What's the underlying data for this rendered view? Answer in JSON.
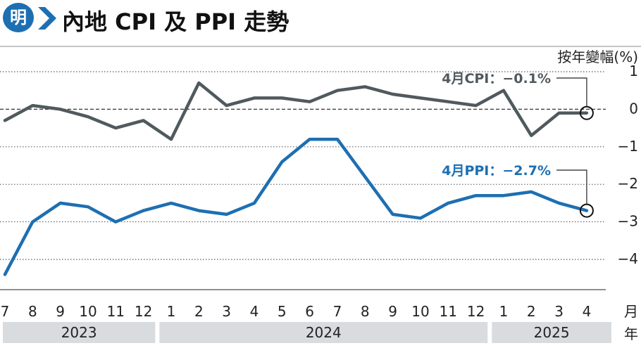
{
  "logo_text": "明",
  "title": "內地 CPI 及 PPI 走勢",
  "colors": {
    "cpi": "#505a5e",
    "ppi": "#1d6fb2",
    "logo": "#1d6fb2",
    "year_band": "#d9dcdf"
  },
  "chart_data": {
    "type": "line",
    "title": "內地 CPI 及 PPI 走勢",
    "unit_label": "按年變幅(%)",
    "x_unit_label": "月\n年",
    "x": [
      "7",
      "8",
      "9",
      "10",
      "11",
      "12",
      "1",
      "2",
      "3",
      "4",
      "5",
      "6",
      "7",
      "8",
      "9",
      "10",
      "11",
      "12",
      "1",
      "2",
      "3",
      "4"
    ],
    "years": [
      {
        "label": "2023",
        "from": 0,
        "to": 5
      },
      {
        "label": "2024",
        "from": 6,
        "to": 17
      },
      {
        "label": "2025",
        "from": 18,
        "to": 21
      }
    ],
    "ylim": [
      -4.5,
      1.3
    ],
    "yticks": [
      1,
      0,
      -1,
      -2,
      -3,
      -4
    ],
    "ytick_labels": [
      "1",
      "0",
      "−1",
      "−2",
      "−3",
      "−4"
    ],
    "grid": "horizontal dotted",
    "series": [
      {
        "key": "cpi",
        "values": [
          -0.3,
          0.1,
          0.0,
          -0.2,
          -0.5,
          -0.3,
          -0.8,
          0.7,
          0.1,
          0.3,
          0.3,
          0.2,
          0.5,
          0.6,
          0.4,
          0.3,
          0.2,
          0.1,
          0.5,
          -0.7,
          -0.1,
          -0.1
        ],
        "annotation": "4月CPI：−0.1%"
      },
      {
        "key": "ppi",
        "values": [
          -4.4,
          -3.0,
          -2.5,
          -2.6,
          -3.0,
          -2.7,
          -2.5,
          -2.7,
          -2.8,
          -2.5,
          -1.4,
          -0.8,
          -0.8,
          -1.8,
          -2.8,
          -2.9,
          -2.5,
          -2.3,
          -2.3,
          -2.2,
          -2.5,
          -2.7
        ],
        "annotation": "4月PPI：−2.7%"
      }
    ]
  }
}
